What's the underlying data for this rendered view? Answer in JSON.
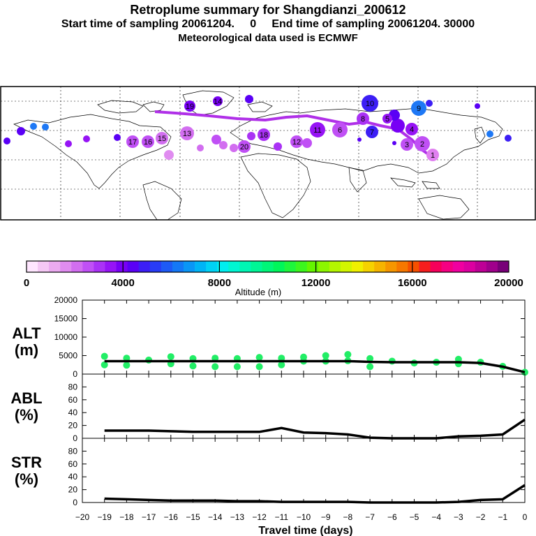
{
  "header": {
    "title": "Retroplume summary for Shangdianzi_200612",
    "subtitle": "Start time of sampling 20061204.     0     End time of sampling 20061204. 30000",
    "met_line": "Meteorological data used is ECMWF"
  },
  "colorbar": {
    "label": "Altitude (m)",
    "tick_labels": [
      "0",
      "4000",
      "8000",
      "12000",
      "16000",
      "20000"
    ],
    "colors": [
      "#ffe6ff",
      "#f5c8f5",
      "#ebaaf0",
      "#e08cf0",
      "#d26ef0",
      "#c050f5",
      "#aa32f5",
      "#9614f5",
      "#7800f5",
      "#5a00f5",
      "#3c1ef5",
      "#283cf5",
      "#1e5af5",
      "#1478f5",
      "#0a96f5",
      "#00b4f5",
      "#00d2f5",
      "#00eef0",
      "#00f5d2",
      "#00f5b4",
      "#00f596",
      "#00f578",
      "#00f55a",
      "#1ef53c",
      "#3cf51e",
      "#64f500",
      "#8cf500",
      "#b4f500",
      "#d2f500",
      "#f0f000",
      "#f5d200",
      "#f5b400",
      "#f59600",
      "#f57800",
      "#f55000",
      "#f51e1e",
      "#f5005a",
      "#f50082",
      "#f000a0",
      "#dc00a0",
      "#be0096",
      "#a0008c",
      "#780078"
    ]
  },
  "map": {
    "plume_labels": [
      "1",
      "2",
      "3",
      "4",
      "5",
      "6",
      "7",
      "8",
      "9",
      "10",
      "11",
      "12",
      "13",
      "14",
      "15",
      "16",
      "17",
      "18",
      "19",
      "20"
    ]
  },
  "chart_data": [
    {
      "type": "scatter",
      "panel": "ALT",
      "ylabel": "ALT\n(m)",
      "ylim": [
        0,
        20000
      ],
      "yticks": [
        0,
        5000,
        10000,
        15000,
        20000
      ],
      "xlim": [
        -20,
        0
      ],
      "x": [
        0,
        -1,
        -2,
        -3,
        -4,
        -5,
        -6,
        -7,
        -8,
        -9,
        -10,
        -11,
        -12,
        -13,
        -14,
        -15,
        -16,
        -17,
        -18,
        -19
      ],
      "median_line": [
        500,
        2000,
        3000,
        3200,
        3200,
        3200,
        3200,
        3300,
        3500,
        3500,
        3500,
        3500,
        3500,
        3500,
        3500,
        3500,
        3500,
        3500,
        3500,
        3500
      ],
      "cluster_points": [
        {
          "x": -19,
          "y": 4800
        },
        {
          "x": -19,
          "y": 2500
        },
        {
          "x": -18,
          "y": 4300
        },
        {
          "x": -18,
          "y": 2400
        },
        {
          "x": -17,
          "y": 3800
        },
        {
          "x": -16,
          "y": 4700
        },
        {
          "x": -16,
          "y": 2800
        },
        {
          "x": -15,
          "y": 4200
        },
        {
          "x": -15,
          "y": 2200
        },
        {
          "x": -14,
          "y": 4300
        },
        {
          "x": -14,
          "y": 2000
        },
        {
          "x": -13,
          "y": 4200
        },
        {
          "x": -13,
          "y": 2000
        },
        {
          "x": -12,
          "y": 4500
        },
        {
          "x": -12,
          "y": 2000
        },
        {
          "x": -11,
          "y": 4300
        },
        {
          "x": -11,
          "y": 2500
        },
        {
          "x": -10,
          "y": 4600
        },
        {
          "x": -10,
          "y": 3500
        },
        {
          "x": -9,
          "y": 5000
        },
        {
          "x": -9,
          "y": 3500
        },
        {
          "x": -8,
          "y": 5300
        },
        {
          "x": -8,
          "y": 3600
        },
        {
          "x": -7,
          "y": 4200
        },
        {
          "x": -7,
          "y": 2000
        },
        {
          "x": -6,
          "y": 3500
        },
        {
          "x": -5,
          "y": 3000
        },
        {
          "x": -4,
          "y": 3200
        },
        {
          "x": -3,
          "y": 4000
        },
        {
          "x": -3,
          "y": 2800
        },
        {
          "x": -2,
          "y": 3200
        },
        {
          "x": -1,
          "y": 2100
        },
        {
          "x": 0,
          "y": 500
        }
      ]
    },
    {
      "type": "line",
      "panel": "ABL",
      "ylabel": "ABL\n(%)",
      "ylim": [
        0,
        100
      ],
      "yticks": [
        0,
        20,
        40,
        60,
        80
      ],
      "x": [
        -19,
        -18,
        -17,
        -16,
        -15,
        -14,
        -13,
        -12,
        -11,
        -10,
        -9,
        -8,
        -7,
        -6,
        -5,
        -4,
        -3,
        -2,
        -1,
        0
      ],
      "values": [
        12,
        12,
        12,
        11,
        10,
        10,
        10,
        10,
        16,
        9,
        8,
        6,
        1,
        0,
        0,
        0,
        3,
        4,
        6,
        29
      ]
    },
    {
      "type": "line",
      "panel": "STR",
      "ylabel": "STR\n(%)",
      "ylim": [
        0,
        100
      ],
      "yticks": [
        0,
        20,
        40,
        60,
        80
      ],
      "x": [
        -19,
        -18,
        -17,
        -16,
        -15,
        -14,
        -13,
        -12,
        -11,
        -10,
        -9,
        -8,
        -7,
        -6,
        -5,
        -4,
        -3,
        -2,
        -1,
        0
      ],
      "values": [
        6,
        5,
        4,
        3,
        3,
        3,
        2,
        2,
        1,
        1,
        1,
        1,
        0,
        0,
        0,
        0,
        1,
        4,
        5,
        27
      ]
    }
  ],
  "x_axis": {
    "xlabel": "Travel time (days)",
    "tick_labels": [
      "−20",
      "−19",
      "−18",
      "−17",
      "−16",
      "−15",
      "−14",
      "−13",
      "−12",
      "−11",
      "−10",
      "−9",
      "−8",
      "−7",
      "−6",
      "−5",
      "−4",
      "−3",
      "−2",
      "−1",
      "0"
    ]
  }
}
